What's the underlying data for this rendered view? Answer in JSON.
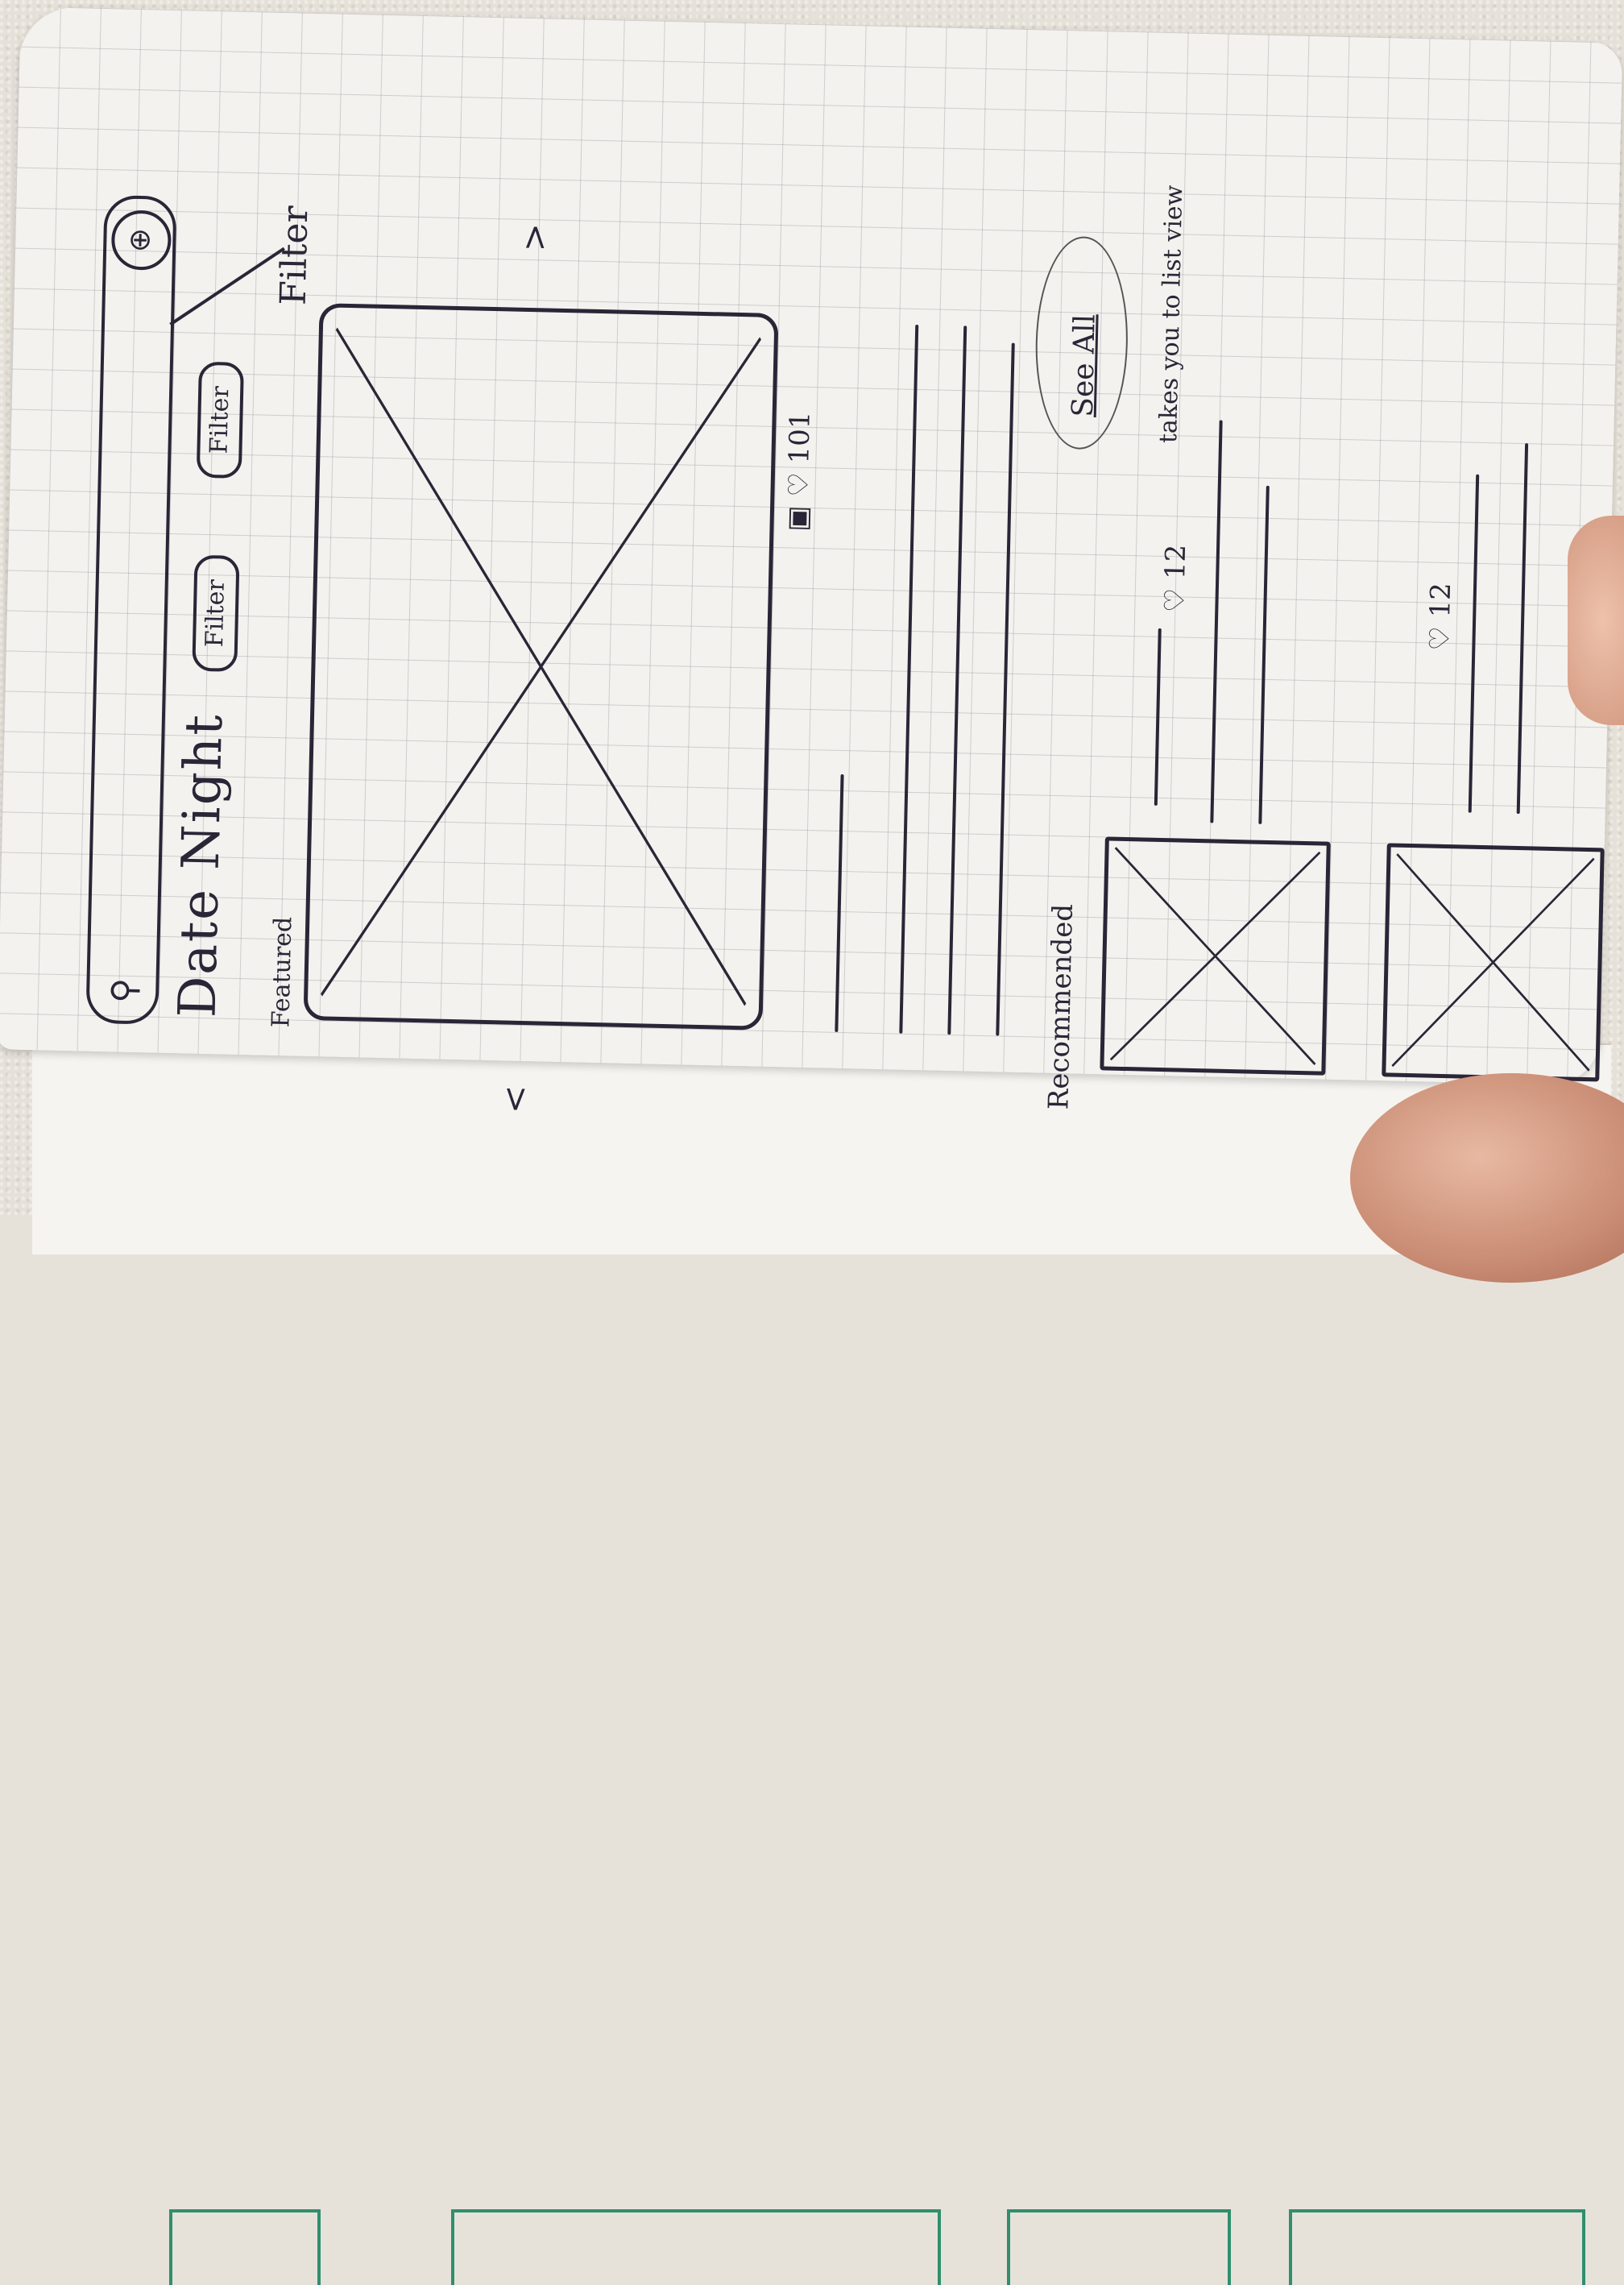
{
  "search": {
    "icon": "search-icon",
    "filter_icon": "filter-toggle-icon"
  },
  "header": {
    "title": "Date Night"
  },
  "filters": [
    "Filter",
    "Filter"
  ],
  "filter_annotation": "Filter",
  "featured": {
    "label": "Featured",
    "prev_arrow": "<",
    "next_arrow": ">",
    "likes": "101"
  },
  "recommended": {
    "label": "Recommended",
    "see_all": "See All",
    "see_all_note": "takes you to list view",
    "items": [
      {
        "likes": "12"
      },
      {
        "likes": "12"
      }
    ]
  },
  "colors": {
    "ink": "#2a2637",
    "grid": "#9a9aa6",
    "accent_green": "#2f8f6e"
  }
}
